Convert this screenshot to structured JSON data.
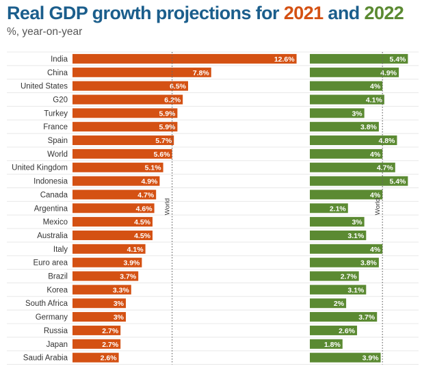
{
  "title": {
    "prefix": "Real GDP growth projections for ",
    "year1": "2021",
    "connector": " and ",
    "year2": "2022"
  },
  "subtitle": "%, year-on-year",
  "colors": {
    "title": "#1b5e8c",
    "series_2021": "#d45113",
    "series_2022": "#5b8a32"
  },
  "chart_data": {
    "type": "bar",
    "orientation": "horizontal",
    "title": "Real GDP growth projections for 2021 and 2022",
    "subtitle": "%, year-on-year",
    "categories": [
      "India",
      "China",
      "United States",
      "G20",
      "Turkey",
      "France",
      "Spain",
      "World",
      "United Kingdom",
      "Indonesia",
      "Canada",
      "Argentina",
      "Mexico",
      "Australia",
      "Italy",
      "Euro area",
      "Brazil",
      "Korea",
      "South Africa",
      "Germany",
      "Russia",
      "Japan",
      "Saudi Arabia"
    ],
    "series": [
      {
        "name": "2021",
        "color": "#d45113",
        "values": [
          12.6,
          7.8,
          6.5,
          6.2,
          5.9,
          5.9,
          5.7,
          5.6,
          5.1,
          4.9,
          4.7,
          4.6,
          4.5,
          4.5,
          4.1,
          3.9,
          3.7,
          3.3,
          3,
          3,
          2.7,
          2.7,
          2.6
        ],
        "labels": [
          "12.6%",
          "7.8%",
          "6.5%",
          "6.2%",
          "5.9%",
          "5.9%",
          "5.7%",
          "5.6%",
          "5.1%",
          "4.9%",
          "4.7%",
          "4.6%",
          "4.5%",
          "4.5%",
          "4.1%",
          "3.9%",
          "3.7%",
          "3.3%",
          "3%",
          "3%",
          "2.7%",
          "2.7%",
          "2.6%"
        ],
        "xlim": [
          0,
          13
        ],
        "reference": {
          "label": "World",
          "value": 5.6
        }
      },
      {
        "name": "2022",
        "color": "#5b8a32",
        "values": [
          5.4,
          4.9,
          4,
          4.1,
          3,
          3.8,
          4.8,
          4,
          4.7,
          5.4,
          4,
          2.1,
          3,
          3.1,
          4,
          3.8,
          2.7,
          3.1,
          2,
          3.7,
          2.6,
          1.8,
          3.9
        ],
        "labels": [
          "5.4%",
          "4.9%",
          "4%",
          "4.1%",
          "3%",
          "3.8%",
          "4.8%",
          "4%",
          "4.7%",
          "5.4%",
          "4%",
          "2.1%",
          "3%",
          "3.1%",
          "4%",
          "3.8%",
          "2.7%",
          "3.1%",
          "2%",
          "3.7%",
          "2.6%",
          "1.8%",
          "3.9%"
        ],
        "xlim": [
          0,
          5.8
        ],
        "reference": {
          "label": "World",
          "value": 4
        }
      }
    ],
    "grid": true,
    "legend": "none"
  }
}
